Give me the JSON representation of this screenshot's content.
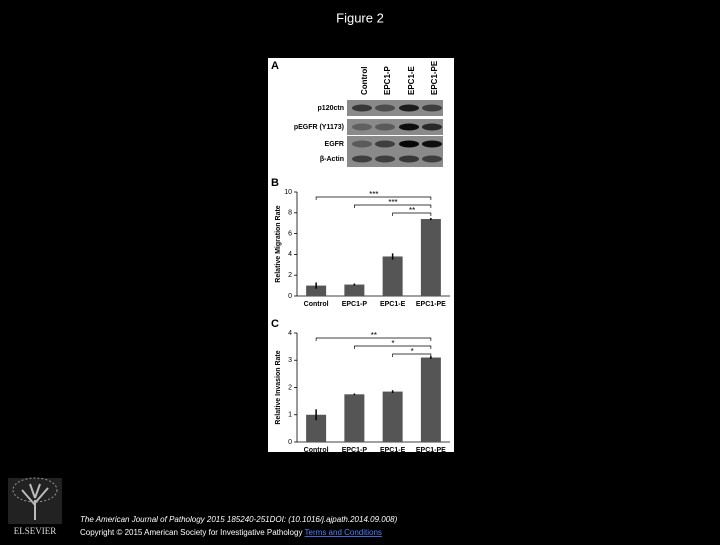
{
  "title": "Figure 2",
  "panel_a": {
    "label": "A",
    "lanes": [
      "Control",
      "EPC1-P",
      "EPC1-E",
      "EPC1-PE"
    ],
    "rows": [
      "p120ctn",
      "pEGFR (Y1173)",
      "EGFR",
      "β-Actin"
    ]
  },
  "chart_data": [
    {
      "type": "bar",
      "panel": "B",
      "y_label": "Relative Migration Rate",
      "categories": [
        "Control",
        "EPC1-P",
        "EPC1-E",
        "EPC1-PE"
      ],
      "values": [
        1.0,
        1.1,
        3.8,
        7.4
      ],
      "errors": [
        0.3,
        0.1,
        0.3,
        0.1
      ],
      "color": "#555555",
      "ylim": [
        0,
        10
      ],
      "yticks": [
        0,
        2,
        4,
        6,
        8,
        10
      ],
      "significance": [
        "***",
        "***",
        "**"
      ]
    },
    {
      "type": "bar",
      "panel": "C",
      "y_label": "Relative Invasion Rate",
      "categories": [
        "Control",
        "EPC1-P",
        "EPC1-E",
        "EPC1-PE"
      ],
      "values": [
        1.0,
        1.75,
        1.85,
        3.1
      ],
      "errors": [
        0.2,
        0.03,
        0.05,
        0.05
      ],
      "color": "#555555",
      "ylim": [
        0,
        4
      ],
      "yticks": [
        0,
        1,
        2,
        3,
        4
      ],
      "significance": [
        "**",
        "*",
        "*"
      ]
    }
  ],
  "footer": {
    "publisher": "ELSEVIER",
    "citation": "The American Journal of Pathology 2015 185240-251DOI: (10.1016/j.ajpath.2014.09.008)",
    "copyright": "Copyright © 2015 American Society for Investigative Pathology",
    "link": "Terms and Conditions"
  }
}
